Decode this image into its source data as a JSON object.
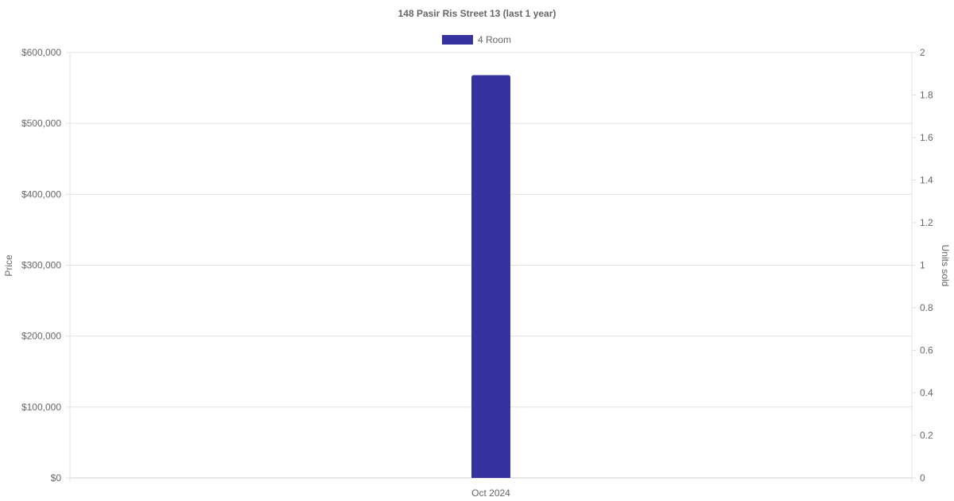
{
  "chart_data": {
    "type": "bar",
    "title": "148 Pasir Ris Street 13 (last 1 year)",
    "categories": [
      "Oct 2024"
    ],
    "series": [
      {
        "name": "4 Room",
        "values": [
          568000
        ],
        "color": "#3632a0",
        "axis": "left"
      }
    ],
    "ylabel": "Price",
    "y2label": "Units sold",
    "ylim": [
      0,
      600000
    ],
    "y2lim": [
      0,
      2
    ],
    "yticks": [
      "$0",
      "$100,000",
      "$200,000",
      "$300,000",
      "$400,000",
      "$500,000",
      "$600,000"
    ],
    "y2ticks": [
      "0",
      "0.2",
      "0.4",
      "0.6",
      "0.8",
      "1",
      "1.2",
      "1.4",
      "1.6",
      "1.8",
      "2"
    ],
    "grid": true,
    "legend": "top"
  }
}
